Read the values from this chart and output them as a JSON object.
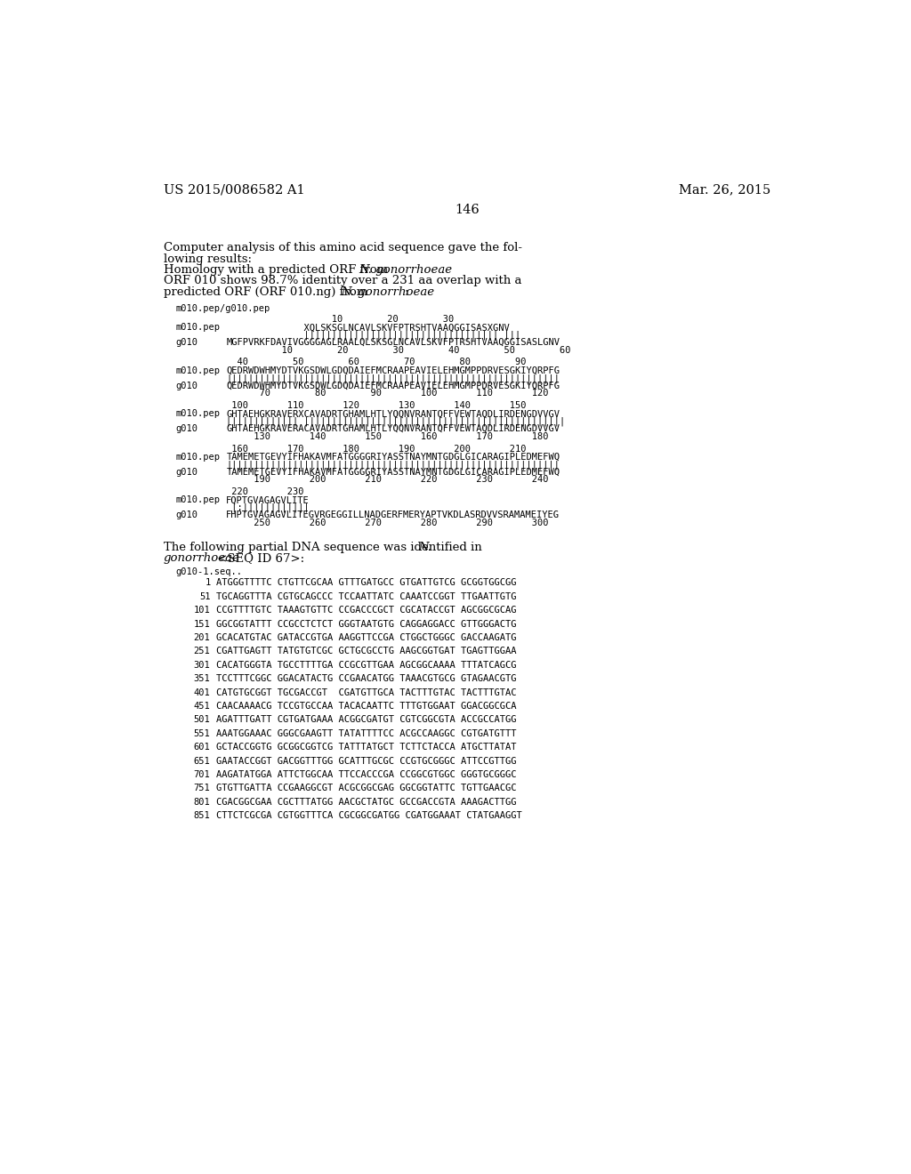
{
  "header_left": "US 2015/0086582 A1",
  "header_right": "Mar. 26, 2015",
  "page_number": "146",
  "background": "#ffffff",
  "body_lines": [
    {
      "text": "Computer analysis of this amino acid sequence gave the fol-",
      "italic_parts": []
    },
    {
      "text": "lowing results:",
      "italic_parts": []
    },
    {
      "text": "Homology with a predicted ORF from |N.| |gonorrhoeae|",
      "italic_parts": [
        4,
        5
      ]
    },
    {
      "text": "ORF 010 shows 98.7% identity over a 231 aa overlap with a",
      "italic_parts": []
    },
    {
      "text": "predicted ORF (ORF 010.ng) from |N.| |gonorrhoeae|:",
      "italic_parts": [
        4,
        5
      ]
    }
  ],
  "seq_header": "m010.pep/g010.pep",
  "blocks": [
    {
      "num_top": "                   10        20        30",
      "lbl1": "m010.pep",
      "seq1": "              XQLSKSGLNCAVLSKVFPTRSHTVAAQGGISASXGNV",
      "match": "              ||||||||||||||||||||||||||||||||||| |||",
      "lbl2": "g010",
      "seq2": "MGFPVRKFDAVIVGGGGAGLRAALQLSKSGLNCAVLSKVFPTRSHTVAAQGGISASLGNV",
      "num_bot": "          10        20        30        40        50        60"
    },
    {
      "num_top": "  40        50        60        70        80        90",
      "lbl1": "m010.pep",
      "seq1": "QEDRWDWHMYDTVKGSDWLGDQDAIEFMCRAAPEAVIELEHMGMPPDRVESGKIYQRPFG",
      "match": "||||||||||||||||||||||||||||||||||||||||||||||||||||||||||||",
      "lbl2": "g010",
      "seq2": "QEDRWDWHMYDTVKGSDWLGDQDAIEFMCRAAPEAVIELEHMGMPPDRVESGKIYQRPFG",
      "num_bot": "      70        80        90       100       110       120"
    },
    {
      "num_top": " 100       110       120       130       140       150",
      "lbl1": "m010.pep",
      "seq1": "GHTAEHGKRAVERXCAVADRTGHAMLHTLYQQNVRANTQFFVEWTAQDLIRDENGDVVGV",
      "match": "||||||||||||| |||||||||||||||||||||||||||||||||||||||||||||||",
      "lbl2": "g010",
      "seq2": "GHTAEHGKRAVERACAVADRTGHAMLHTLYQQNVRANTQFFVEWTAQDLIRDENGDVVGV",
      "num_bot": "     130       140       150       160       170       180"
    },
    {
      "num_top": " 160       170       180       190       200       210",
      "lbl1": "m010.pep",
      "seq1": "TAMEMETGEVYIFHAKAVMFATGGGGRIYASSTNAYMNTGDGLGICARAGIPLEDMEFWQ",
      "match": "||||||||||||||||||||||||||||||||||||||||||||||||||||||||||||",
      "lbl2": "g010",
      "seq2": "TAMEMETGEVYIFHAKAVMFATGGGGRIYASSTNAYMNTGDGLGICARAGIPLEDMEFWQ",
      "num_bot": "     190       200       210       220       230       240"
    },
    {
      "num_top": " 220       230",
      "lbl1": "m010.pep",
      "seq1": "FQPTGVAGAGVLITE",
      "match": " |:||||||||||||",
      "lbl2": "g010",
      "seq2": "FHPTGVAGAGVLITEGVRGEGGILLNADGERFMERYAPTVKDLASRDVVSRAMAMEIYEG",
      "num_bot": "     250       260       270       280       290       300"
    }
  ],
  "dna_intro_line1": "The following partial DNA sequence was identified in ",
  "dna_intro_italic": "N.",
  "dna_intro_line2_italic": "gonorrhoeae",
  "dna_intro_line2_rest": " <SEQ ID 67>:",
  "dna_label": "g010-1.seq..",
  "dna_seqs": [
    [
      "1",
      "ATGGGTTTTC CTGTTCGCAA GTTTGATGCC GTGATTGTCG GCGGTGGCGG"
    ],
    [
      "51",
      "TGCAGGTTTA CGTGCAGCCC TCCAATTATC CAAATCCGGT TTGAATTGTG"
    ],
    [
      "101",
      "CCGTTTTGTC TAAAGTGTTC CCGACCCGCT CGCATACCGT AGCGGCGCAG"
    ],
    [
      "151",
      "GGCGGTATTT CCGCCTCTCT GGGTAATGTG CAGGAGGACC GTTGGGACTG"
    ],
    [
      "201",
      "GCACATGTAC GATACCGTGA AAGGTTCCGA CTGGCTGGGC GACCAAGATG"
    ],
    [
      "251",
      "CGATTGAGTT TATGTGTCGC GCTGCGCCTG AAGCGGTGAT TGAGTTGGAA"
    ],
    [
      "301",
      "CACATGGGTA TGCCTTTTGA CCGCGTTGAA AGCGGCAAAA TTTATCAGCG"
    ],
    [
      "351",
      "TCCTTTCGGC GGACATACTG CCGAACATGG TAAACGTGCG GTAGAACGTG"
    ],
    [
      "401",
      "CATGTGCGGT TGCGACCGT  CGATGTTGCA TACTTTGTAC TACTTTGTAC"
    ],
    [
      "451",
      "CAACAAAACG TCCGTGCCAA TACACAATTC TTTGTGGAAT GGACGGCGCA"
    ],
    [
      "501",
      "AGATTTGATT CGTGATGAAA ACGGCGATGT CGTCGGCGTA ACCGCCATGG"
    ],
    [
      "551",
      "AAATGGAAAC GGGCGAAGTT TATATTTTCC ACGCCAAGGC CGTGATGTTT"
    ],
    [
      "601",
      "GCTACCGGTG GCGGCGGTCG TATTTATGCT TCTTCTACCA ATGCTTATAT"
    ],
    [
      "651",
      "GAATACCGGT GACGGTTTGG GCATTTGCGC CCGTGCGGGC ATTCCGTTGG"
    ],
    [
      "701",
      "AAGATATGGA ATTCTGGCAA TTCCACCCGA CCGGCGTGGC GGGTGCGGGC"
    ],
    [
      "751",
      "GTGTTGATTA CCGAAGGCGT ACGCGGCGAG GGCGGTATTC TGTTGAACGC"
    ],
    [
      "801",
      "CGACGGCGAA CGCTTTATGG AACGCTATGC GCCGACCGTA AAAGACTTGG"
    ],
    [
      "851",
      "CTTCTCGCGA CGTGGTTTCA CGCGGCGATGG CGATGGAAAT CTATGAAGGT"
    ]
  ]
}
